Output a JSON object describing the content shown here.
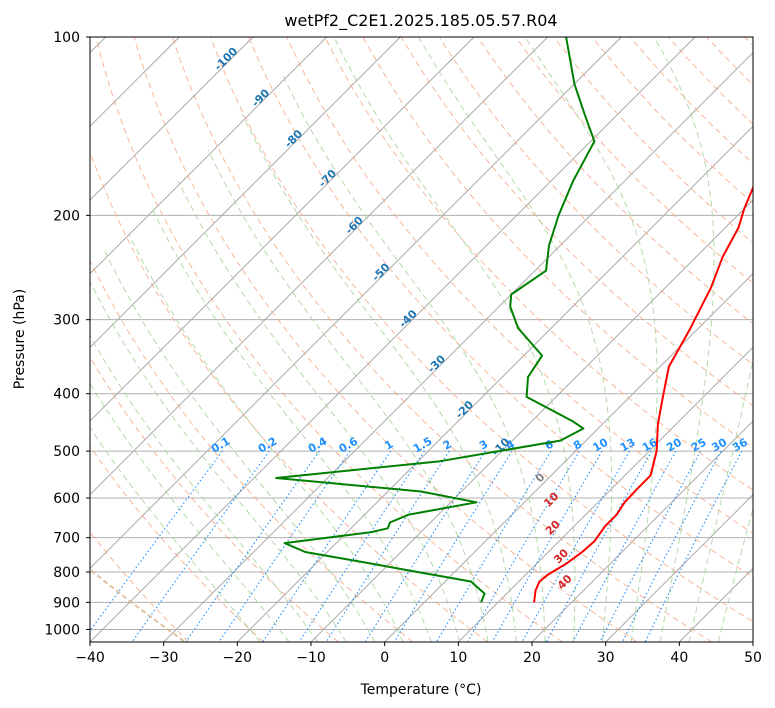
{
  "chart_data": {
    "type": "line",
    "title": "wetPf2_C2E1.2025.185.05.57.R04",
    "xlabel": "Temperature (°C)",
    "ylabel": "Pressure (hPa)",
    "xlim": [
      -40,
      50
    ],
    "ylim": [
      1050,
      100
    ],
    "y_scale": "log",
    "x_ticks": [
      -40,
      -30,
      -20,
      -10,
      0,
      10,
      20,
      30,
      40,
      50
    ],
    "x_tick_labels": [
      "−40",
      "−30",
      "−20",
      "−10",
      "0",
      "10",
      "20",
      "30",
      "40",
      "50"
    ],
    "y_ticks": [
      100,
      200,
      300,
      400,
      500,
      600,
      700,
      800,
      900,
      1000
    ],
    "y_tick_labels": [
      "100",
      "200",
      "300",
      "400",
      "500",
      "600",
      "700",
      "800",
      "900",
      "1000"
    ],
    "grid": true,
    "skew": 45,
    "series": [
      {
        "role": "temperature",
        "color": "#ff0000",
        "points": [
          [
            14.9,
            900
          ],
          [
            13.5,
            860
          ],
          [
            12.8,
            830
          ],
          [
            13.0,
            810
          ],
          [
            13.4,
            795
          ],
          [
            14.0,
            775
          ],
          [
            14.6,
            740
          ],
          [
            14.8,
            710
          ],
          [
            14.2,
            670
          ],
          [
            14.2,
            640
          ],
          [
            13.6,
            610
          ],
          [
            13.5,
            580
          ],
          [
            13.5,
            550
          ],
          [
            11.0,
            500
          ],
          [
            7.5,
            450
          ],
          [
            4.5,
            405
          ],
          [
            1.2,
            360
          ],
          [
            -1.1,
            310
          ],
          [
            -3.8,
            265
          ],
          [
            -6.4,
            235
          ],
          [
            -8.2,
            210
          ],
          [
            -10.0,
            195
          ],
          [
            -12.2,
            175
          ],
          [
            -16.0,
            155
          ],
          [
            -21.5,
            130
          ],
          [
            -27.0,
            115
          ],
          [
            -31.5,
            100
          ]
        ]
      },
      {
        "role": "dewpoint",
        "color": "#008000",
        "points": [
          [
            7.7,
            900
          ],
          [
            7.0,
            870
          ],
          [
            3.5,
            830
          ],
          [
            -6.5,
            795
          ],
          [
            -12.2,
            775
          ],
          [
            -23.0,
            740
          ],
          [
            -27.0,
            715
          ],
          [
            -16.7,
            685
          ],
          [
            -15.0,
            675
          ],
          [
            -15.5,
            660
          ],
          [
            -14.0,
            640
          ],
          [
            -6.5,
            610
          ],
          [
            -15.5,
            585
          ],
          [
            -37.0,
            555
          ],
          [
            -17.0,
            520
          ],
          [
            -3.5,
            480
          ],
          [
            -2.0,
            458
          ],
          [
            -4.5,
            445
          ],
          [
            -14.0,
            405
          ],
          [
            -16.5,
            375
          ],
          [
            -17.5,
            345
          ],
          [
            -24.5,
            310
          ],
          [
            -28.5,
            285
          ],
          [
            -30.0,
            272
          ],
          [
            -28.5,
            248
          ],
          [
            -31.5,
            225
          ],
          [
            -34.3,
            200
          ],
          [
            -37.0,
            175
          ],
          [
            -39.5,
            150
          ],
          [
            -44.5,
            135
          ],
          [
            -50.0,
            120
          ],
          [
            -57.5,
            100
          ]
        ]
      }
    ],
    "dry_adiabat_labels": [
      "-100",
      "-90",
      "-80",
      "-70",
      "-60",
      "-50",
      "-40",
      "-30",
      "-20",
      "-10"
    ],
    "mixing_ratio_labels": [
      "0.1",
      "0.2",
      "0.4",
      "0.6",
      "1",
      "1.5",
      "2",
      "3",
      "4",
      "6",
      "8",
      "10",
      "13",
      "16",
      "20",
      "25",
      "30",
      "36"
    ],
    "moist_adiabat_labels": [
      "0",
      "10",
      "20",
      "30",
      "40"
    ],
    "colors": {
      "temperature": "#ff0000",
      "dewpoint": "#008000",
      "isotherm": "#a0a0a0",
      "dry_adiabat": "#f4a582",
      "moist_adiabat": "#a6d49a",
      "mixing_ratio": "#1e90ff",
      "dry_adiabat_label": "#1f77b4",
      "moist_adiabat_label": "#d62728",
      "boundary_curve": "#d8b48a"
    }
  }
}
